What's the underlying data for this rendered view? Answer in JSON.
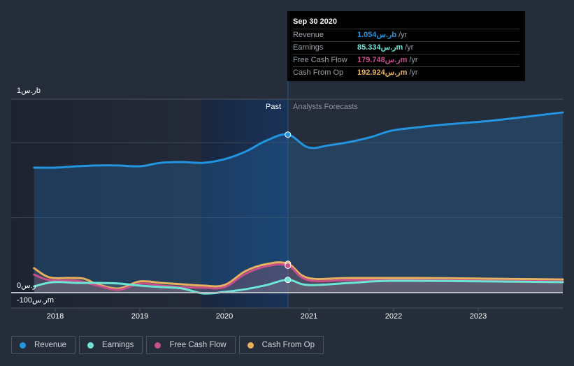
{
  "tooltip": {
    "date": "Sep 30 2020",
    "rows": [
      {
        "label": "Revenue",
        "value": "1.054ر.سb",
        "unit": "/yr",
        "color": "#2394df"
      },
      {
        "label": "Earnings",
        "value": "85.334ر.سm",
        "unit": "/yr",
        "color": "#6ce5d6"
      },
      {
        "label": "Free Cash Flow",
        "value": "179.748ر.سm",
        "unit": "/yr",
        "color": "#c74f8c"
      },
      {
        "label": "Cash From Op",
        "value": "192.924ر.سm",
        "unit": "/yr",
        "color": "#e8b15e"
      }
    ]
  },
  "regions": {
    "past": "Past",
    "forecast": "Analysts Forecasts"
  },
  "legend": [
    {
      "label": "Revenue",
      "color": "#2394df"
    },
    {
      "label": "Earnings",
      "color": "#6ce5d6"
    },
    {
      "label": "Free Cash Flow",
      "color": "#c74f8c"
    },
    {
      "label": "Cash From Op",
      "color": "#e8b15e"
    }
  ],
  "chart_data": {
    "type": "line",
    "title": "",
    "xlabel": "",
    "ylabel": "",
    "y_unit": "SAR millions",
    "ylim": [
      -100,
      1290
    ],
    "xlim": [
      2017.75,
      2024.0
    ],
    "y_tick_labels": [
      {
        "value": 1000,
        "label": "1ر.سb"
      },
      {
        "value": 0,
        "label": "0ر.س"
      },
      {
        "value": -100,
        "label": "-100ر.سm"
      }
    ],
    "x_ticks": [
      2018,
      2019,
      2020,
      2021,
      2022,
      2023
    ],
    "x_tick_labels": [
      "2018",
      "2019",
      "2020",
      "2021",
      "2022",
      "2023"
    ],
    "past_end": 2020.75,
    "highlight_start": 2019.73,
    "series": [
      {
        "name": "Revenue",
        "color": "#2394df",
        "x": [
          2017.75,
          2018.01,
          2018.26,
          2018.5,
          2018.75,
          2019.0,
          2019.25,
          2019.5,
          2019.75,
          2020.0,
          2020.25,
          2020.5,
          2020.75,
          2020.99,
          2021.24,
          2021.49,
          2021.74,
          2021.98,
          2022.31,
          2022.64,
          2023.14,
          2023.64,
          2024.0
        ],
        "values": [
          834,
          834,
          843,
          848,
          848,
          843,
          866,
          871,
          866,
          890,
          941,
          1015,
          1054,
          969,
          983,
          1006,
          1039,
          1081,
          1104,
          1123,
          1146,
          1178,
          1202
        ]
      },
      {
        "name": "Earnings",
        "color": "#6ce5d6",
        "x": [
          2017.75,
          2017.97,
          2018.26,
          2018.5,
          2018.75,
          2019.0,
          2019.25,
          2019.5,
          2019.75,
          2020.0,
          2020.25,
          2020.5,
          2020.75,
          2020.99,
          2021.49,
          2021.98,
          2023.14,
          2024.0
        ],
        "values": [
          42,
          70,
          65,
          65,
          61,
          47,
          37,
          28,
          -5,
          5,
          23,
          51,
          85.334,
          51,
          65,
          79,
          75,
          70
        ]
      },
      {
        "name": "Free Cash Flow",
        "color": "#c74f8c",
        "x": [
          2017.75,
          2017.93,
          2018.26,
          2018.5,
          2018.75,
          2019.0,
          2019.25,
          2019.5,
          2019.75,
          2020.0,
          2020.25,
          2020.5,
          2020.75,
          2020.99,
          2021.49,
          2022.31,
          2023.14,
          2024.0
        ],
        "values": [
          121,
          84,
          79,
          47,
          19,
          61,
          47,
          37,
          33,
          37,
          126,
          177,
          179.748,
          84,
          84,
          84,
          79,
          75
        ]
      },
      {
        "name": "Cash From Op",
        "color": "#e8b15e",
        "x": [
          2017.75,
          2017.93,
          2018.17,
          2018.34,
          2018.5,
          2018.75,
          2019.0,
          2019.25,
          2019.5,
          2019.75,
          2020.0,
          2020.25,
          2020.5,
          2020.75,
          2020.99,
          2021.49,
          2022.31,
          2023.14,
          2024.0
        ],
        "values": [
          163,
          102,
          98,
          93,
          56,
          28,
          75,
          65,
          56,
          47,
          51,
          144,
          191,
          192.924,
          98,
          98,
          98,
          93,
          88
        ]
      }
    ],
    "grid": true,
    "legend_position": "bottom-left"
  }
}
